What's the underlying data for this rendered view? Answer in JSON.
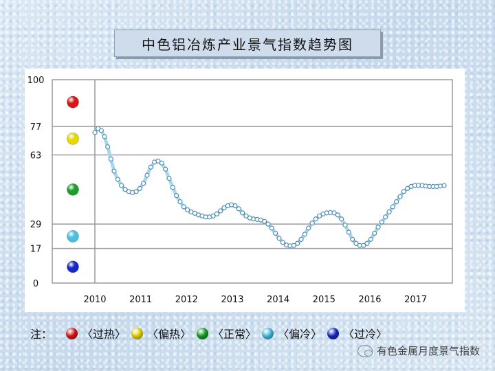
{
  "chart_data": {
    "type": "line",
    "title": "中色铝冶炼产业景气指数趋势图",
    "xlabel": "",
    "ylabel": "",
    "x_ticks": [
      "2010",
      "2011",
      "2012",
      "2013",
      "2014",
      "2015",
      "2016",
      "2017"
    ],
    "y_ticks": [
      0,
      17,
      29,
      63,
      77,
      100
    ],
    "ylim": [
      0,
      100
    ],
    "xlim": [
      2010,
      2017.8
    ],
    "grid": true,
    "series": [
      {
        "points": [
          [
            2010.0,
            74
          ],
          [
            2010.07,
            76
          ],
          [
            2010.14,
            75
          ],
          [
            2010.21,
            72
          ],
          [
            2010.28,
            67
          ],
          [
            2010.35,
            61
          ],
          [
            2010.42,
            55
          ],
          [
            2010.5,
            51
          ],
          [
            2010.58,
            48
          ],
          [
            2010.66,
            46
          ],
          [
            2010.74,
            45
          ],
          [
            2010.82,
            44.5
          ],
          [
            2010.9,
            45
          ],
          [
            2010.98,
            46.5
          ],
          [
            2011.06,
            49
          ],
          [
            2011.14,
            53
          ],
          [
            2011.22,
            57
          ],
          [
            2011.3,
            59.5
          ],
          [
            2011.38,
            60
          ],
          [
            2011.46,
            59
          ],
          [
            2011.54,
            56
          ],
          [
            2011.62,
            51.5
          ],
          [
            2011.7,
            47
          ],
          [
            2011.78,
            43
          ],
          [
            2011.86,
            40
          ],
          [
            2011.94,
            37.5
          ],
          [
            2012.02,
            36
          ],
          [
            2012.1,
            35
          ],
          [
            2012.18,
            34.3
          ],
          [
            2012.26,
            33.5
          ],
          [
            2012.34,
            33
          ],
          [
            2012.42,
            32.5
          ],
          [
            2012.5,
            32.5
          ],
          [
            2012.58,
            33
          ],
          [
            2012.66,
            34
          ],
          [
            2012.74,
            35.5
          ],
          [
            2012.82,
            37
          ],
          [
            2012.9,
            38
          ],
          [
            2012.98,
            38.5
          ],
          [
            2013.06,
            38
          ],
          [
            2013.14,
            36.5
          ],
          [
            2013.22,
            34.5
          ],
          [
            2013.3,
            33
          ],
          [
            2013.38,
            32
          ],
          [
            2013.46,
            31.5
          ],
          [
            2013.54,
            31.3
          ],
          [
            2013.62,
            31
          ],
          [
            2013.7,
            30.3
          ],
          [
            2013.78,
            29
          ],
          [
            2013.86,
            27
          ],
          [
            2013.94,
            24.5
          ],
          [
            2014.02,
            22
          ],
          [
            2014.1,
            20
          ],
          [
            2014.18,
            18.7
          ],
          [
            2014.26,
            18.3
          ],
          [
            2014.34,
            18.5
          ],
          [
            2014.42,
            19.5
          ],
          [
            2014.5,
            21.5
          ],
          [
            2014.58,
            24
          ],
          [
            2014.66,
            27
          ],
          [
            2014.74,
            29.5
          ],
          [
            2014.82,
            31.5
          ],
          [
            2014.9,
            33
          ],
          [
            2014.98,
            34
          ],
          [
            2015.06,
            34.5
          ],
          [
            2015.14,
            34.7
          ],
          [
            2015.22,
            34.5
          ],
          [
            2015.3,
            33.5
          ],
          [
            2015.38,
            31.5
          ],
          [
            2015.46,
            28.5
          ],
          [
            2015.54,
            25
          ],
          [
            2015.62,
            21.5
          ],
          [
            2015.7,
            19.5
          ],
          [
            2015.78,
            18.5
          ],
          [
            2015.86,
            18.5
          ],
          [
            2015.94,
            19.5
          ],
          [
            2016.02,
            21.5
          ],
          [
            2016.1,
            24.5
          ],
          [
            2016.18,
            27.5
          ],
          [
            2016.26,
            30
          ],
          [
            2016.34,
            32.5
          ],
          [
            2016.42,
            35
          ],
          [
            2016.5,
            37.5
          ],
          [
            2016.58,
            40
          ],
          [
            2016.66,
            42.5
          ],
          [
            2016.74,
            45
          ],
          [
            2016.82,
            46.5
          ],
          [
            2016.9,
            47.5
          ],
          [
            2016.98,
            48
          ],
          [
            2017.06,
            48
          ],
          [
            2017.14,
            48
          ],
          [
            2017.22,
            47.7
          ],
          [
            2017.3,
            47.5
          ],
          [
            2017.38,
            47.5
          ],
          [
            2017.46,
            47.5
          ],
          [
            2017.54,
            47.7
          ],
          [
            2017.62,
            48
          ]
        ]
      }
    ],
    "zone_markers": [
      {
        "value": 89,
        "color": "#d81818"
      },
      {
        "value": 71,
        "color": "#e8d800"
      },
      {
        "value": 46,
        "color": "#18a028"
      },
      {
        "value": 23,
        "color": "#48c0e0"
      },
      {
        "value": 8,
        "color": "#1828c8"
      }
    ]
  },
  "legend": {
    "note": "注：",
    "items": [
      {
        "label": "〈过热〉",
        "color": "#d81818"
      },
      {
        "label": "〈偏热〉",
        "color": "#e8d800"
      },
      {
        "label": "〈正常〉",
        "color": "#18a028"
      },
      {
        "label": "〈偏冷〉",
        "color": "#48c0e0"
      },
      {
        "label": "〈过冷〉",
        "color": "#1828c8"
      }
    ]
  },
  "watermark": "有色金属月度景气指数"
}
